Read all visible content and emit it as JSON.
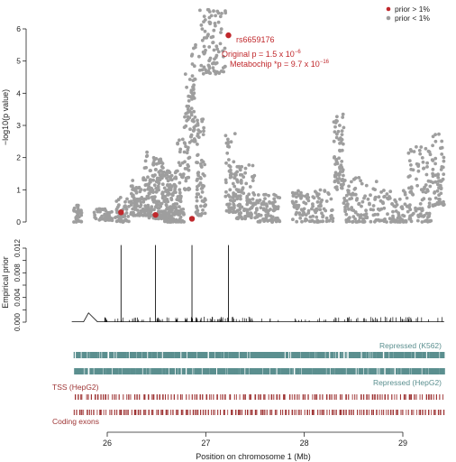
{
  "figure": {
    "xlabel": "Position on chromosome 1 (Mb)"
  },
  "chart_data": [
    {
      "type": "scatter",
      "panel": "association",
      "ylabel": "−log10(p value)",
      "xlim": [
        25.64,
        29.45
      ],
      "ylim": [
        0,
        6.8
      ],
      "yticks": [
        0,
        1,
        2,
        3,
        4,
        5,
        6
      ],
      "legend": {
        "position": "top-right",
        "entries": [
          {
            "label": "prior > 1%",
            "color": "#c0282c"
          },
          {
            "label": "prior < 1%",
            "color": "#9e9e9e"
          }
        ]
      },
      "clusters": [
        {
          "x": [
            25.66,
            25.74
          ],
          "y": [
            0.0,
            0.55
          ],
          "n": 30
        },
        {
          "x": [
            25.85,
            26.05
          ],
          "y": [
            0.05,
            0.45
          ],
          "n": 40
        },
        {
          "x": [
            26.08,
            26.22
          ],
          "y": [
            0.0,
            0.8
          ],
          "n": 45
        },
        {
          "x": [
            26.22,
            26.35
          ],
          "y": [
            0.2,
            1.3
          ],
          "n": 70
        },
        {
          "x": [
            26.35,
            26.42
          ],
          "y": [
            0.2,
            2.2
          ],
          "n": 45
        },
        {
          "x": [
            26.42,
            26.58
          ],
          "y": [
            0.1,
            2.0
          ],
          "n": 150
        },
        {
          "x": [
            26.58,
            26.7
          ],
          "y": [
            0.0,
            1.6
          ],
          "n": 120
        },
        {
          "x": [
            26.7,
            26.78
          ],
          "y": [
            0.0,
            2.6
          ],
          "n": 60
        },
        {
          "x": [
            26.78,
            26.84
          ],
          "y": [
            1.0,
            4.6
          ],
          "n": 45
        },
        {
          "x": [
            26.84,
            26.9
          ],
          "y": [
            2.5,
            5.9
          ],
          "n": 45
        },
        {
          "x": [
            26.9,
            27.0
          ],
          "y": [
            0.2,
            3.2
          ],
          "n": 70
        },
        {
          "x": [
            26.93,
            27.2
          ],
          "y": [
            4.6,
            6.6
          ],
          "n": 90
        },
        {
          "x": [
            27.2,
            27.3
          ],
          "y": [
            0.3,
            2.8
          ],
          "n": 60
        },
        {
          "x": [
            27.3,
            27.5
          ],
          "y": [
            0.1,
            1.8
          ],
          "n": 100
        },
        {
          "x": [
            27.5,
            27.75
          ],
          "y": [
            0.0,
            0.9
          ],
          "n": 90
        },
        {
          "x": [
            27.88,
            28.3
          ],
          "y": [
            0.0,
            1.0
          ],
          "n": 110
        },
        {
          "x": [
            28.3,
            28.4
          ],
          "y": [
            1.0,
            3.4
          ],
          "n": 70
        },
        {
          "x": [
            28.4,
            28.75
          ],
          "y": [
            0.0,
            1.4
          ],
          "n": 100
        },
        {
          "x": [
            28.75,
            29.05
          ],
          "y": [
            0.0,
            1.0
          ],
          "n": 80
        },
        {
          "x": [
            29.05,
            29.3
          ],
          "y": [
            0.0,
            2.5
          ],
          "n": 100
        },
        {
          "x": [
            29.3,
            29.42
          ],
          "y": [
            0.5,
            2.8
          ],
          "n": 60
        }
      ],
      "highlighted_points": [
        {
          "x": 26.14,
          "y": 0.3
        },
        {
          "x": 26.49,
          "y": 0.22
        },
        {
          "x": 26.86,
          "y": 0.1
        },
        {
          "x": 27.23,
          "y": 5.8
        }
      ],
      "annotation": {
        "snp": "rs6659176",
        "line1_prefix": "Original p = 1.5 x 10",
        "line1_exp": "−6",
        "line2_prefix": "Metabochip *p = 9.7 x 10",
        "line2_exp": "−16",
        "color": "#c0282c"
      }
    },
    {
      "type": "line",
      "panel": "empirical-prior",
      "ylabel": "Empirical prior",
      "xlim": [
        25.64,
        29.45
      ],
      "ylim": [
        0,
        0.0125
      ],
      "yticks": [
        0.0,
        0.002,
        0.004,
        0.006,
        0.008,
        0.01,
        0.012
      ],
      "ytick_labels": [
        "0.000",
        "",
        "0.004",
        "",
        "0.008",
        "",
        "0.012"
      ],
      "baseline": 6e-05,
      "spikes": [
        {
          "x": 26.14,
          "y": 0.0125
        },
        {
          "x": 26.49,
          "y": 0.0125
        },
        {
          "x": 26.86,
          "y": 0.0125
        },
        {
          "x": 27.23,
          "y": 0.0125
        }
      ],
      "bump": {
        "x": [
          25.76,
          25.9
        ],
        "peak_x": 25.81,
        "peak_y": 0.0015
      },
      "small_spike_ranges": [
        {
          "x": [
            25.9,
            26.8
          ],
          "count": 35,
          "max": 0.0008
        },
        {
          "x": [
            26.8,
            27.5
          ],
          "count": 45,
          "max": 0.0009
        },
        {
          "x": [
            27.5,
            28.3
          ],
          "count": 15,
          "max": 0.0007
        },
        {
          "x": [
            28.3,
            29.4
          ],
          "count": 45,
          "max": 0.0009
        }
      ]
    },
    {
      "type": "table",
      "panel": "annotation-tracks",
      "xlim": [
        25.64,
        29.45
      ],
      "tracks": [
        {
          "label": "Repressed (K562)",
          "label_side": "right",
          "label_position": "above",
          "color": "#5b8f8f",
          "x": [
            25.65,
            29.42
          ],
          "marks": 200
        },
        {
          "label": "Repressed (HepG2)",
          "label_side": "right",
          "label_position": "below",
          "color": "#5b8f8f",
          "x": [
            25.65,
            29.42
          ],
          "marks": 210
        },
        {
          "label": "TSS (HepG2)",
          "label_side": "left",
          "label_position": "above",
          "color": "#9e3535",
          "x": [
            25.65,
            29.42
          ],
          "marks": 130
        },
        {
          "label": "Coding exons",
          "label_side": "left",
          "label_position": "below",
          "color": "#9e3535",
          "x": [
            25.65,
            29.42
          ],
          "marks": 150
        }
      ],
      "xticks": [
        26,
        27,
        28,
        29
      ]
    }
  ]
}
